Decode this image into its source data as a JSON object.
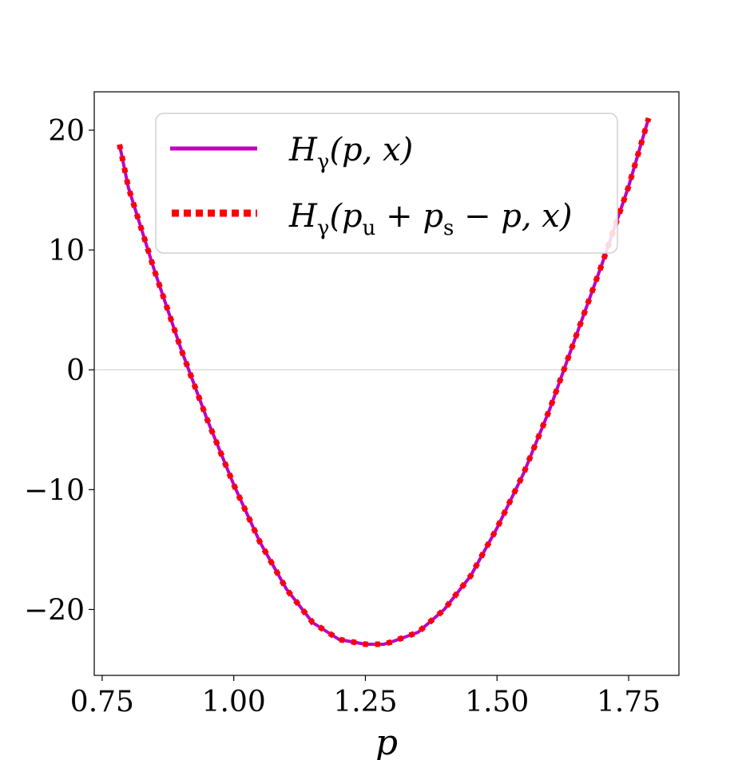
{
  "chart_data": {
    "type": "line",
    "title": "",
    "xlabel": "p",
    "ylabel": "",
    "xlim": [
      0.735,
      1.8455
    ],
    "ylim": [
      -25.5,
      23.2
    ],
    "xticks": [
      0.75,
      1.0,
      1.25,
      1.5,
      1.75
    ],
    "xtick_labels": [
      "0.75",
      "1.00",
      "1.25",
      "1.50",
      "1.75"
    ],
    "yticks": [
      -20,
      -10,
      0,
      10,
      20
    ],
    "ytick_labels": [
      "−20",
      "−10",
      "0",
      "10",
      "20"
    ],
    "grid": false,
    "reference_line_y": 0,
    "legend_position": "upper-center",
    "series": [
      {
        "name": "H_γ(p, x)",
        "style": "solid",
        "color": "#bf00bf",
        "x": [
          0.783,
          0.8,
          0.85,
          0.9,
          0.95,
          1.0,
          1.05,
          1.1,
          1.15,
          1.2,
          1.25,
          1.285,
          1.3,
          1.35,
          1.4,
          1.45,
          1.5,
          1.55,
          1.6,
          1.65,
          1.7,
          1.75,
          1.788
        ],
        "y": [
          18.8,
          15.2,
          8.2,
          1.7,
          -4.2,
          -9.6,
          -14.4,
          -18.3,
          -21.1,
          -22.5,
          -22.9,
          -22.9,
          -22.7,
          -21.9,
          -20.0,
          -17.2,
          -13.2,
          -8.7,
          -3.3,
          2.8,
          8.9,
          15.3,
          21.0
        ]
      },
      {
        "name": "H_γ(p_u + p_s − p, x)",
        "style": "dotted",
        "color": "#ff0000",
        "x": [
          0.783,
          0.8,
          0.85,
          0.9,
          0.95,
          1.0,
          1.05,
          1.1,
          1.15,
          1.2,
          1.25,
          1.285,
          1.3,
          1.35,
          1.4,
          1.45,
          1.5,
          1.55,
          1.6,
          1.65,
          1.7,
          1.75,
          1.788
        ],
        "y": [
          18.8,
          15.2,
          8.2,
          1.7,
          -4.2,
          -9.6,
          -14.4,
          -18.3,
          -21.1,
          -22.5,
          -22.9,
          -22.9,
          -22.7,
          -21.9,
          -20.0,
          -17.2,
          -13.2,
          -8.7,
          -3.3,
          2.8,
          8.9,
          15.3,
          21.0
        ]
      }
    ]
  },
  "legend": {
    "entry1": {
      "base": "H",
      "sub": "γ",
      "rest": "(p, x)"
    },
    "entry2": {
      "base": "H",
      "sub": "γ",
      "open": "(p",
      "sub_u": "u",
      "plus": " + p",
      "sub_s": "s",
      "rest": " − p, x)"
    }
  }
}
